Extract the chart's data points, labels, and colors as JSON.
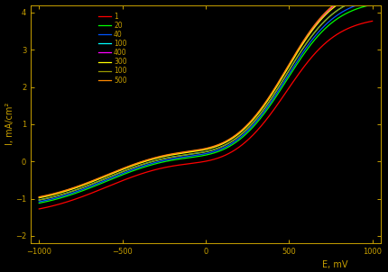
{
  "title": "",
  "xlabel": "E, mV",
  "ylabel": "I, mA/cm²",
  "background_color": "#000000",
  "text_color": "#c8a000",
  "axis_color": "#c8a000",
  "xlim": [
    -1050,
    1050
  ],
  "ylim": [
    -2.2,
    4.2
  ],
  "xticks": [
    -1000,
    -500,
    0,
    500,
    1000
  ],
  "yticks": [
    -2,
    -1,
    0,
    1,
    2,
    3,
    4
  ],
  "legend_labels": [
    "1",
    "20",
    "40",
    "100",
    "400",
    "300",
    "100",
    "500"
  ],
  "line_colors": [
    "#ff4040",
    "#00ff00",
    "#0000ff",
    "#00ffff",
    "#ff00ff",
    "#ffff00",
    "#808000",
    "#ff0000"
  ],
  "line_widths": [
    1.0,
    1.0,
    1.0,
    1.0,
    1.0,
    1.0,
    1.0,
    1.0
  ],
  "scan_rates": [
    1,
    20,
    40,
    100,
    400,
    300,
    100,
    500
  ]
}
